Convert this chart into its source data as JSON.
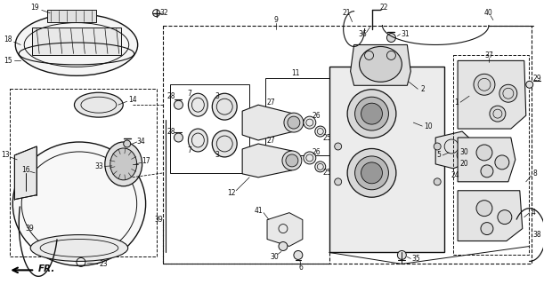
{
  "bg_color": "#ffffff",
  "lc": "#111111",
  "figsize": [
    6.11,
    3.2
  ],
  "dpi": 100
}
